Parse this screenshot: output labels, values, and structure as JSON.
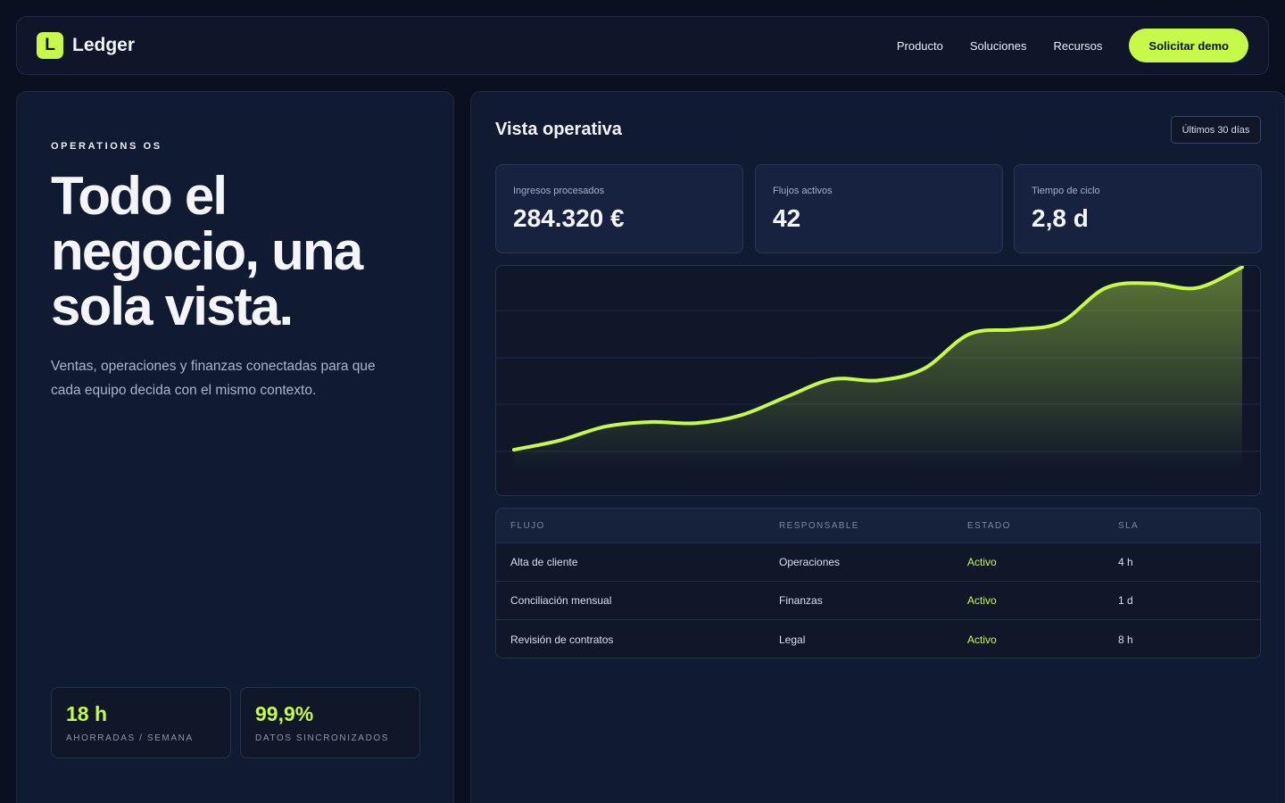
{
  "nav": {
    "brand_letter": "L",
    "brand_name": "Ledger",
    "links": [
      "Producto",
      "Soluciones",
      "Recursos"
    ],
    "cta": "Solicitar demo"
  },
  "hero": {
    "eyebrow": "OPERATIONS OS",
    "title": "Todo el negocio, una sola vista.",
    "subtitle": "Ventas, operaciones y finanzas conectadas para que cada equipo decida con el mismo contexto.",
    "stats": [
      {
        "value": "18 h",
        "label": "AHORRADAS / SEMANA"
      },
      {
        "value": "99,9%",
        "label": "DATOS SINCRONIZADOS"
      }
    ]
  },
  "dashboard": {
    "title": "Vista operativa",
    "range": "Últimos 30 días",
    "kpis": [
      {
        "label": "Ingresos procesados",
        "value": "284.320 €"
      },
      {
        "label": "Flujos activos",
        "value": "42"
      },
      {
        "label": "Tiempo de ciclo",
        "value": "2,8 d"
      }
    ],
    "table": {
      "headers": [
        "FLUJO",
        "RESPONSABLE",
        "ESTADO",
        "SLA"
      ],
      "rows": [
        {
          "flow": "Alta de cliente",
          "owner": "Operaciones",
          "status": "Activo",
          "sla": "4 h"
        },
        {
          "flow": "Conciliación mensual",
          "owner": "Finanzas",
          "status": "Activo",
          "sla": "1 d"
        },
        {
          "flow": "Revisión de contratos",
          "owner": "Legal",
          "status": "Activo",
          "sla": "8 h"
        }
      ]
    }
  },
  "colors": {
    "accent": "#c6f94a",
    "background": "#0a1020",
    "panel": "#101a30"
  },
  "chart_data": {
    "type": "area",
    "x": [
      0,
      1,
      2,
      3,
      4,
      5,
      6,
      7,
      8,
      9,
      10,
      11,
      12,
      13,
      14,
      15,
      16
    ],
    "values": [
      10,
      18,
      30,
      34,
      33,
      40,
      56,
      71,
      70,
      80,
      110,
      114,
      120,
      150,
      154,
      150,
      168
    ],
    "ylim": [
      0,
      200
    ],
    "grid": true,
    "legend": "none"
  }
}
